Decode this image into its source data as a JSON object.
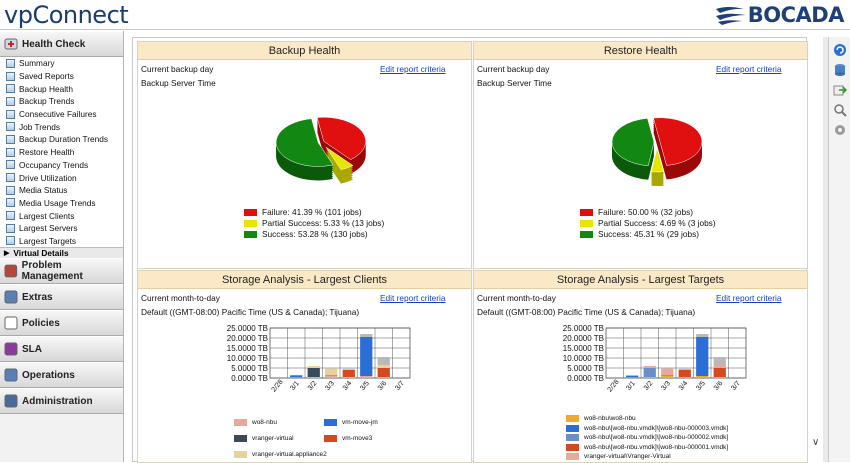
{
  "app": {
    "title": "vpConnect",
    "brand": "BOCADA"
  },
  "sidebar": {
    "health_check": "Health Check",
    "items": [
      {
        "label": "Summary"
      },
      {
        "label": "Saved Reports"
      },
      {
        "label": "Backup Health"
      },
      {
        "label": "Backup Trends"
      },
      {
        "label": "Consecutive Failures"
      },
      {
        "label": "Job Trends"
      },
      {
        "label": "Backup Duration Trends"
      },
      {
        "label": "Restore Health"
      },
      {
        "label": "Occupancy Trends"
      },
      {
        "label": "Drive Utilization"
      },
      {
        "label": "Media Status"
      },
      {
        "label": "Media Usage Trends"
      },
      {
        "label": "Largest Clients"
      },
      {
        "label": "Largest Servers"
      },
      {
        "label": "Largest Targets"
      }
    ],
    "virtual_details": "Virtual Details",
    "sections": [
      "Problem Management",
      "Extras",
      "Policies",
      "SLA",
      "Operations",
      "Administration"
    ]
  },
  "panels": {
    "backup": {
      "title": "Backup Health",
      "line1": "Current backup day",
      "line2": "Backup Server Time",
      "edit": "Edit report criteria"
    },
    "restore": {
      "title": "Restore Health",
      "line1": "Current backup day",
      "line2": "Backup Server Time",
      "edit": "Edit report criteria"
    },
    "clients": {
      "title": "Storage Analysis - Largest Clients",
      "line1": "Current month-to-day",
      "line2": "Default ((GMT-08:00) Pacific Time (US & Canada); Tijuana)",
      "edit": "Edit report criteria"
    },
    "targets": {
      "title": "Storage Analysis - Largest Targets",
      "line1": "Current month-to-day",
      "line2": "Default ((GMT-08:00) Pacific Time (US & Canada); Tijuana)",
      "edit": "Edit report criteria"
    }
  },
  "chart_data": [
    {
      "type": "pie",
      "title": "Backup Health",
      "labels": [
        "Failure: 41.39 % (101 jobs)",
        "Partial Success: 5.33 % (13 jobs)",
        "Success: 53.28 % (130 jobs)"
      ],
      "values": [
        41.39,
        5.33,
        53.28
      ],
      "colors": [
        "#e01010",
        "#e6e600",
        "#118811"
      ]
    },
    {
      "type": "pie",
      "title": "Restore Health",
      "labels": [
        "Failure: 50.00 % (32 jobs)",
        "Partial Success: 4.69 % (3 jobs)",
        "Success: 45.31 % (29 jobs)"
      ],
      "values": [
        50.0,
        4.69,
        45.31
      ],
      "colors": [
        "#e01010",
        "#e6e600",
        "#118811"
      ]
    },
    {
      "type": "bar",
      "title": "Storage Analysis - Largest Clients",
      "categories": [
        "2/28",
        "3/1",
        "3/2",
        "3/3",
        "3/4",
        "3/5",
        "3/6",
        "3/7"
      ],
      "yticks": [
        "25.0000 TB",
        "20.0000 TB",
        "15.0000 TB",
        "10.0000 TB",
        "5.0000 TB",
        "0.0000 TB"
      ],
      "ylim": [
        0,
        25
      ],
      "series": [
        {
          "name": "wo8-nbu",
          "color": "#e8a89a",
          "values": [
            0,
            0.3,
            0.5,
            1.0,
            0.5,
            1.0,
            0.5,
            0
          ]
        },
        {
          "name": "vm-move-jm",
          "color": "#2a6fd6",
          "values": [
            0,
            0.7,
            0,
            0,
            0,
            19.5,
            0,
            0
          ]
        },
        {
          "name": "vranger-virtual",
          "color": "#3a4a5a",
          "values": [
            0,
            0.3,
            4.5,
            0,
            0,
            0,
            0,
            0
          ]
        },
        {
          "name": "vm-move3",
          "color": "#d44a1e",
          "values": [
            0,
            0,
            0,
            0.3,
            3.5,
            0,
            4.5,
            0
          ]
        },
        {
          "name": "vranger-virtual.appliance2",
          "color": "#e8d19a",
          "values": [
            0,
            0,
            1.0,
            3.5,
            0.3,
            0,
            1.5,
            0
          ]
        },
        {
          "name": "",
          "color": "#b9b9b9",
          "values": [
            0,
            0,
            0,
            0.5,
            0.3,
            1.5,
            4.0,
            0
          ]
        }
      ]
    },
    {
      "type": "bar",
      "title": "Storage Analysis - Largest Targets",
      "categories": [
        "2/28",
        "3/1",
        "3/2",
        "3/3",
        "3/4",
        "3/5",
        "3/6",
        "3/7"
      ],
      "yticks": [
        "25.0000 TB",
        "20.0000 TB",
        "15.0000 TB",
        "10.0000 TB",
        "5.0000 TB",
        "0.0000 TB"
      ],
      "ylim": [
        0,
        25
      ],
      "series": [
        {
          "name": "wo8-nbu\\wo8-nbu",
          "color": "#f0a830",
          "values": [
            0,
            0.3,
            0.5,
            1.0,
            0.5,
            1.0,
            0.5,
            0
          ]
        },
        {
          "name": "wo8-nbu\\[wo8-nbu.vmdk]\\[wo8-nbu-000003.vmdk]",
          "color": "#2a6fd6",
          "values": [
            0,
            0.7,
            0,
            0,
            0,
            19.5,
            0,
            0
          ]
        },
        {
          "name": "wo8-nbu\\[wo8-nbu.vmdk]\\[wo8-nbu-000002.vmdk]",
          "color": "#6a8fc8",
          "values": [
            0,
            0.3,
            4.5,
            0,
            0,
            0,
            0,
            0
          ]
        },
        {
          "name": "wo8-nbu\\[wo8-nbu.vmdk]\\[wo8-nbu-000001.vmdk]",
          "color": "#d44a1e",
          "values": [
            0,
            0,
            0,
            0.3,
            3.5,
            0,
            4.5,
            0
          ]
        },
        {
          "name": "vranger-virtual\\Vranger-Virtual",
          "color": "#e8a89a",
          "values": [
            0,
            0,
            1.0,
            3.5,
            0.3,
            0,
            1.5,
            0
          ]
        },
        {
          "name": "",
          "color": "#b9b9b9",
          "values": [
            0,
            0,
            0,
            0.5,
            0.3,
            1.5,
            4.0,
            0
          ]
        }
      ]
    }
  ]
}
